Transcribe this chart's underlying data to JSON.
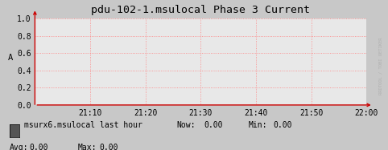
{
  "title": "pdu-102-1.msulocal Phase 3 Current",
  "ylabel": "A",
  "ylim": [
    0.0,
    1.0
  ],
  "yticks": [
    0.0,
    0.2,
    0.4,
    0.6,
    0.8,
    1.0
  ],
  "xtick_labels": [
    "21:10",
    "21:20",
    "21:30",
    "21:40",
    "21:50",
    "22:00"
  ],
  "bg_color": "#d8d8d8",
  "plot_bg_color": "#e8e8e8",
  "outer_bg_color": "#c8c8c8",
  "grid_color": "#ff8080",
  "line_color": "#00aa00",
  "legend_label": "msurx6.msulocal last hour",
  "legend_box_color": "#555555",
  "title_fontsize": 9.5,
  "tick_fontsize": 7,
  "ylabel_fontsize": 7.5,
  "right_label": "RRDTOOL / TOBI OETIKER",
  "arrow_color": "#cc0000",
  "now_val": "0.00",
  "min_val": "0.00",
  "avg_val": "0.00",
  "max_val": "0.00"
}
